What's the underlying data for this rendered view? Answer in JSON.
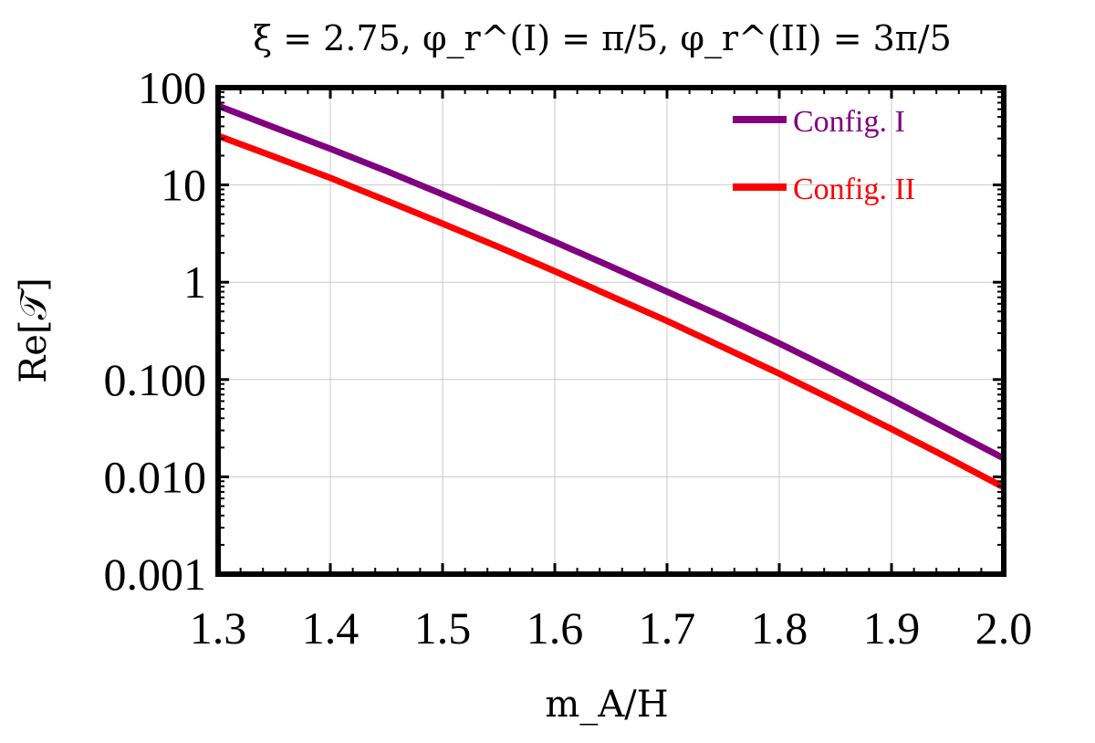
{
  "chart_data": {
    "type": "line",
    "title": "ξ = 2.75, φ_r^(I) = π/5, φ_r^(II) = 3π/5",
    "xlabel": "m_A/H",
    "ylabel": "Re[𝒯]",
    "xlim": [
      1.3,
      2.0
    ],
    "ylim": [
      0.001,
      100
    ],
    "yscale": "log",
    "grid": true,
    "legend_position": "top-right",
    "x_ticks": [
      "1.3",
      "1.4",
      "1.5",
      "1.6",
      "1.7",
      "1.8",
      "1.9",
      "2.0"
    ],
    "y_ticks": [
      "0.001",
      "0.010",
      "0.100",
      "1",
      "10",
      "100"
    ],
    "series": [
      {
        "name": "Config. I",
        "color": "#800080",
        "x": [
          1.3,
          1.35,
          1.4,
          1.45,
          1.5,
          1.55,
          1.6,
          1.65,
          1.7,
          1.75,
          1.8,
          1.85,
          1.9,
          1.95,
          2.0
        ],
        "y": [
          65,
          39,
          23.5,
          13.9,
          8.0,
          4.6,
          2.6,
          1.45,
          0.8,
          0.44,
          0.235,
          0.122,
          0.062,
          0.031,
          0.0155
        ]
      },
      {
        "name": "Config. II",
        "color": "#ff0000",
        "x": [
          1.3,
          1.35,
          1.4,
          1.45,
          1.5,
          1.55,
          1.6,
          1.65,
          1.7,
          1.75,
          1.8,
          1.85,
          1.9,
          1.95,
          2.0
        ],
        "y": [
          32,
          19.5,
          11.8,
          6.9,
          4.0,
          2.3,
          1.3,
          0.72,
          0.4,
          0.215,
          0.115,
          0.06,
          0.031,
          0.0157,
          0.0078
        ]
      }
    ]
  }
}
